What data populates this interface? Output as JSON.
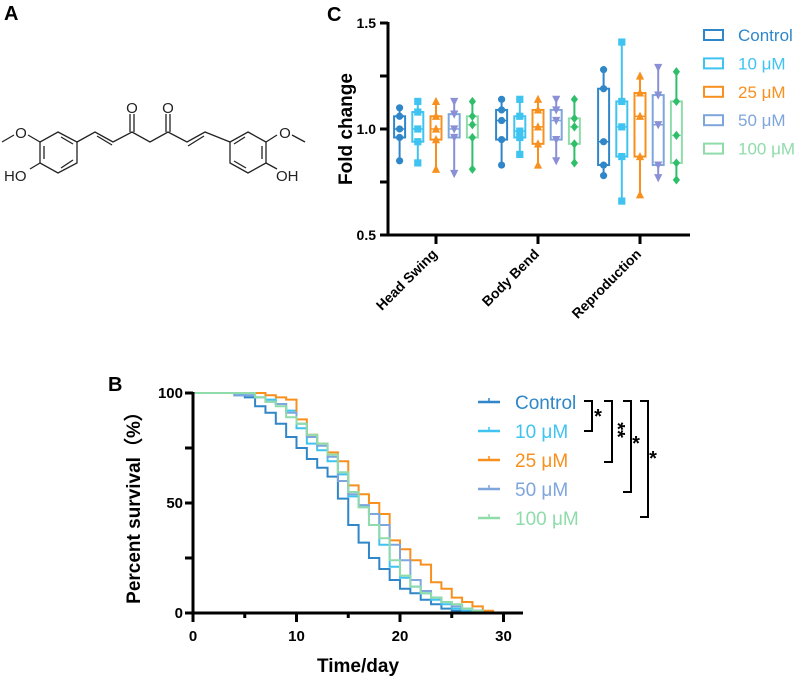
{
  "panels": {
    "a": "A",
    "b": "B",
    "c": "C"
  },
  "structure": {
    "atoms": [
      "O",
      "O",
      "O",
      "O",
      "HO",
      "OH"
    ]
  },
  "chart_data": [
    {
      "panel": "C",
      "type": "box",
      "ylabel": "Fold change",
      "ylim": [
        0.5,
        1.5
      ],
      "yticks": [
        "0.5",
        "1.0",
        "1.5"
      ],
      "categories": [
        "Head Swing",
        "Body Bend",
        "Reproduction"
      ],
      "legend_placement": "right",
      "series": [
        {
          "name": "Control",
          "color": "#2f86c8",
          "box_color": "#2f86c8",
          "marker": "circle",
          "stats": [
            [
              0.85,
              0.96,
              1.0,
              1.06,
              1.1
            ],
            [
              0.83,
              0.95,
              1.04,
              1.09,
              1.14
            ],
            [
              0.78,
              0.83,
              0.94,
              1.19,
              1.28
            ]
          ]
        },
        {
          "name": "10 μM",
          "color": "#3fc3f0",
          "box_color": "#3fc3f0",
          "marker": "square",
          "stats": [
            [
              0.84,
              0.94,
              1.0,
              1.08,
              1.13
            ],
            [
              0.88,
              0.96,
              0.99,
              1.06,
              1.14
            ],
            [
              0.66,
              0.87,
              1.01,
              1.13,
              1.41
            ]
          ]
        },
        {
          "name": "25 μM",
          "color": "#f7901e",
          "box_color": "#f7901e",
          "marker": "triangle-up",
          "stats": [
            [
              0.81,
              0.95,
              1.0,
              1.06,
              1.13
            ],
            [
              0.83,
              0.93,
              1.01,
              1.09,
              1.14
            ],
            [
              0.69,
              0.87,
              1.06,
              1.17,
              1.25
            ]
          ]
        },
        {
          "name": "50 μM",
          "color": "#8a8fd6",
          "box_color": "#7ea6dc",
          "marker": "triangle-down",
          "stats": [
            [
              0.79,
              0.96,
              1.0,
              1.07,
              1.13
            ],
            [
              0.85,
              0.95,
              1.04,
              1.09,
              1.14
            ],
            [
              0.77,
              0.83,
              1.02,
              1.16,
              1.29
            ]
          ]
        },
        {
          "name": "100 μM",
          "color": "#2fbf6a",
          "box_color": "#8fdcaa",
          "marker": "diamond",
          "stats": [
            [
              0.81,
              0.96,
              1.02,
              1.06,
              1.13
            ],
            [
              0.84,
              0.93,
              1.01,
              1.05,
              1.14
            ],
            [
              0.76,
              0.84,
              0.97,
              1.13,
              1.27
            ]
          ]
        }
      ]
    },
    {
      "panel": "B",
      "type": "line",
      "subtype": "kaplan-meier step",
      "xlabel": "Time/day",
      "ylabel": "Percent survival（%）",
      "xlim": [
        0,
        32
      ],
      "ylim": [
        0,
        100
      ],
      "xticks": [
        "0",
        "10",
        "20",
        "30"
      ],
      "yticks": [
        "0",
        "50",
        "100"
      ],
      "legend_placement": "right",
      "x": [
        4,
        5,
        6,
        7,
        8,
        9,
        10,
        11,
        12,
        13,
        14,
        15,
        16,
        17,
        18,
        19,
        20,
        21,
        22,
        23,
        24,
        25,
        26,
        27,
        28,
        29
      ],
      "series": [
        {
          "name": "Control",
          "color": "#2f86c8",
          "values": [
            99,
            98,
            94,
            91,
            86,
            80,
            75,
            70,
            66,
            62,
            52,
            40,
            32,
            25,
            20,
            15,
            11,
            9,
            6,
            4,
            2,
            1,
            0.5,
            0,
            0,
            0
          ]
        },
        {
          "name": "10 μM",
          "color": "#3fc3f0",
          "values": [
            99,
            99,
            98,
            97,
            95,
            92,
            84,
            77,
            74,
            69,
            63,
            53,
            49,
            45,
            31,
            21,
            16,
            12,
            9,
            6,
            4,
            2,
            1,
            1,
            0,
            0
          ]
        },
        {
          "name": "25 μM",
          "color": "#f7901e",
          "values": [
            100,
            100,
            100,
            99,
            98,
            97,
            88,
            81,
            77,
            73,
            69,
            58,
            54,
            50,
            45,
            33,
            29,
            24,
            22,
            14,
            11,
            7,
            5,
            3,
            1,
            0
          ]
        },
        {
          "name": "50 μM",
          "color": "#7ea6dc",
          "values": [
            99,
            99,
            98,
            96,
            95,
            91,
            86,
            80,
            76,
            71,
            60,
            54,
            49,
            45,
            40,
            31,
            24,
            15,
            10,
            7,
            5,
            3,
            2,
            1,
            0,
            0
          ]
        },
        {
          "name": "100 μM",
          "color": "#8fdcaa",
          "values": [
            100,
            100,
            98,
            96,
            94,
            89,
            86,
            81,
            77,
            72,
            64,
            55,
            48,
            40,
            34,
            24,
            17,
            12,
            9,
            7,
            5,
            4,
            2,
            1,
            0,
            0
          ]
        }
      ],
      "significance": [
        {
          "pair": [
            "Control",
            "10 μM"
          ],
          "label": "*"
        },
        {
          "pair": [
            "Control",
            "25 μM"
          ],
          "label": "**"
        },
        {
          "pair": [
            "Control",
            "50 μM"
          ],
          "label": "*"
        },
        {
          "pair": [
            "Control",
            "100 μM"
          ],
          "label": "*"
        }
      ]
    }
  ]
}
